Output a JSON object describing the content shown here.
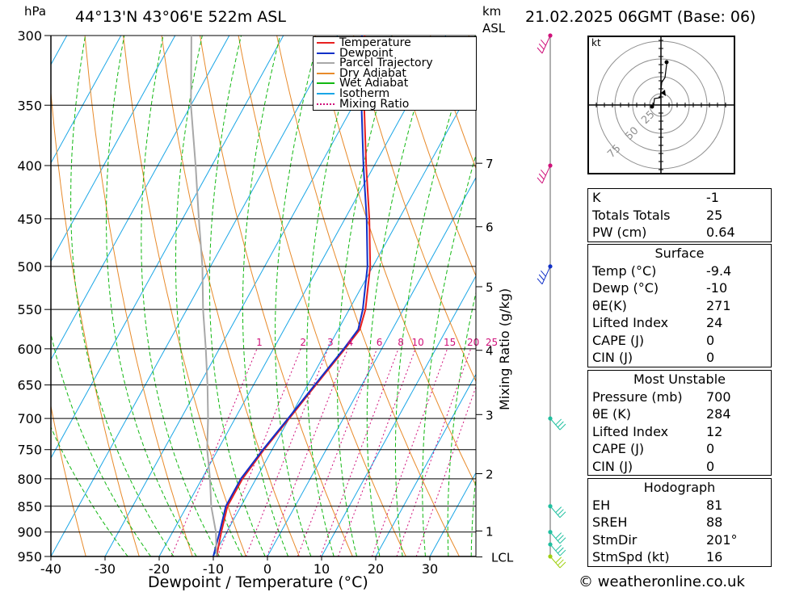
{
  "header": {
    "pressure_unit": "hPa",
    "location": "44°13'N  43°06'E  522m  ASL",
    "km_label": "km",
    "asl_label": "ASL",
    "datetime": "21.02.2025  06GMT  (Base: 06)"
  },
  "chart_data": {
    "type": "line",
    "title": "",
    "xlabel": "Dewpoint / Temperature (°C)",
    "ylabel": "hPa",
    "x_ticks": [
      -40,
      -30,
      -20,
      -10,
      0,
      10,
      20,
      30
    ],
    "pressure_levels": [
      300,
      350,
      400,
      450,
      500,
      550,
      600,
      650,
      700,
      750,
      800,
      850,
      900,
      950
    ],
    "km_ticks": [
      {
        "label": "7",
        "p": 398
      },
      {
        "label": "6",
        "p": 458
      },
      {
        "label": "5",
        "p": 523
      },
      {
        "label": "4",
        "p": 602
      },
      {
        "label": "3",
        "p": 694
      },
      {
        "label": "2",
        "p": 791
      },
      {
        "label": "1",
        "p": 898
      },
      {
        "label": "LCL",
        "p": 951
      }
    ],
    "mixing_ratio_title": "Mixing Ratio (g/kg)",
    "mixing_ratio_labels": [
      "1",
      "2",
      "3",
      "4",
      "6",
      "8",
      "10",
      "15",
      "20",
      "25"
    ],
    "legend": {
      "placement": "top-right",
      "entries": [
        {
          "name": "Temperature",
          "color": "#e82020"
        },
        {
          "name": "Dewpoint",
          "color": "#1030c8"
        },
        {
          "name": "Parcel Trajectory",
          "color": "#a8a8a8"
        },
        {
          "name": "Dry Adiabat",
          "color": "#e88a2a"
        },
        {
          "name": "Wet Adiabat",
          "color": "#12b812"
        },
        {
          "name": "Isotherm",
          "color": "#1aa6e6"
        },
        {
          "name": "Mixing Ratio",
          "color": "#d0107a"
        }
      ]
    },
    "series": [
      {
        "name": "Temperature",
        "points": [
          [
            -9.4,
            950
          ],
          [
            -11,
            900
          ],
          [
            -12.5,
            850
          ],
          [
            -12.5,
            800
          ],
          [
            -11.5,
            750
          ],
          [
            -10,
            700
          ],
          [
            -8.5,
            650
          ],
          [
            -6.8,
            600
          ],
          [
            -6,
            575
          ],
          [
            -7,
            550
          ],
          [
            -10.5,
            500
          ],
          [
            -15.5,
            450
          ],
          [
            -21.5,
            400
          ],
          [
            -28,
            350
          ],
          [
            -35,
            300
          ]
        ]
      },
      {
        "name": "Dewpoint",
        "points": [
          [
            -10,
            950
          ],
          [
            -11.3,
            900
          ],
          [
            -12.8,
            850
          ],
          [
            -12.8,
            800
          ],
          [
            -11.7,
            750
          ],
          [
            -10.2,
            700
          ],
          [
            -8.7,
            650
          ],
          [
            -7,
            600
          ],
          [
            -6.3,
            575
          ],
          [
            -7.5,
            550
          ],
          [
            -11,
            500
          ],
          [
            -16,
            450
          ],
          [
            -22,
            400
          ],
          [
            -28.5,
            350
          ],
          [
            -35.5,
            300
          ]
        ]
      },
      {
        "name": "Parcel Trajectory",
        "points": [
          [
            -9.4,
            950
          ],
          [
            -12,
            900
          ],
          [
            -15.5,
            850
          ],
          [
            -18.5,
            800
          ],
          [
            -22,
            750
          ],
          [
            -25,
            700
          ],
          [
            -28.5,
            650
          ],
          [
            -32.5,
            600
          ],
          [
            -37,
            550
          ],
          [
            -41.5,
            500
          ],
          [
            -47,
            450
          ],
          [
            -53,
            400
          ],
          [
            -60,
            350
          ],
          [
            -67,
            300
          ]
        ]
      }
    ]
  },
  "wind_profile": {
    "colors": {
      "line": "#606060",
      "upper": "#d0107a",
      "mid": "#1030c8",
      "low": "#20c0a0",
      "surface": "#a0d010"
    },
    "levels": [
      {
        "p": 300,
        "color": "upper"
      },
      {
        "p": 400,
        "color": "upper"
      },
      {
        "p": 500,
        "color": "mid"
      },
      {
        "p": 700,
        "color": "low"
      },
      {
        "p": 850,
        "color": "low"
      },
      {
        "p": 900,
        "color": "low"
      },
      {
        "p": 925,
        "color": "low"
      },
      {
        "p": 950,
        "color": "surface"
      }
    ]
  },
  "hodograph": {
    "unit_label": "kt",
    "ring_labels": [
      "25",
      "50",
      "75"
    ]
  },
  "indices": {
    "k_label": "K",
    "k_value": "-1",
    "tt_label": "Totals Totals",
    "tt_value": "25",
    "pw_label": "PW (cm)",
    "pw_value": "0.64"
  },
  "surface": {
    "title": "Surface",
    "rows": [
      {
        "label": "Temp (°C)",
        "value": "-9.4"
      },
      {
        "label": "Dewp (°C)",
        "value": "-10"
      },
      {
        "label": "θE(K)",
        "value": "271"
      },
      {
        "label": "Lifted Index",
        "value": "24"
      },
      {
        "label": "CAPE (J)",
        "value": "0"
      },
      {
        "label": "CIN (J)",
        "value": "0"
      }
    ]
  },
  "most_unstable": {
    "title": "Most Unstable",
    "rows": [
      {
        "label": "Pressure (mb)",
        "value": "700"
      },
      {
        "label": "θE (K)",
        "value": "284"
      },
      {
        "label": "Lifted Index",
        "value": "12"
      },
      {
        "label": "CAPE (J)",
        "value": "0"
      },
      {
        "label": "CIN (J)",
        "value": "0"
      }
    ]
  },
  "hodograph_table": {
    "title": "Hodograph",
    "rows": [
      {
        "label": "EH",
        "value": "81"
      },
      {
        "label": "SREH",
        "value": "88"
      },
      {
        "label": "StmDir",
        "value": "201°"
      },
      {
        "label": "StmSpd (kt)",
        "value": "16"
      }
    ]
  },
  "footer": {
    "copyright": "© weatheronline.co.uk"
  }
}
